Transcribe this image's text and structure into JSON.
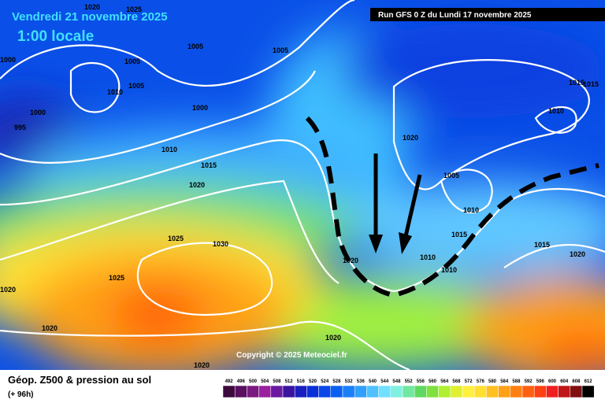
{
  "header": {
    "valid_time": "Vendredi 21 novembre 2025",
    "local_time": "1:00 locale",
    "run": "Run GFS 0 Z du Lundi 17 novembre 2025"
  },
  "isobar_labels": [
    "1020",
    "1025",
    "1000",
    "1005",
    "1005",
    "1005",
    "1005",
    "1010",
    "1000",
    "995",
    "1000",
    "1010",
    "1015",
    "1020",
    "1020",
    "1005",
    "1010",
    "1015",
    "1010",
    "1010",
    "1020",
    "1025",
    "1030",
    "1025",
    "1020",
    "1020",
    "1020",
    "1020",
    "1015",
    "1020",
    "1010",
    "1015",
    "1015"
  ],
  "copyright": "Copyright © 2025 Meteociel.fr",
  "footer": {
    "title": "Géop. Z500 & pression au sol",
    "lead": "(+ 96h)"
  },
  "color_scale": {
    "labels": [
      492,
      496,
      500,
      504,
      508,
      512,
      516,
      520,
      524,
      528,
      532,
      536,
      540,
      544,
      548,
      552,
      556,
      560,
      564,
      568,
      572,
      576,
      580,
      584,
      588,
      592,
      596,
      600,
      604,
      608,
      612
    ],
    "colors": [
      "#3c0a3c",
      "#5a1060",
      "#7a1a80",
      "#9a20a0",
      "#6a1aa0",
      "#3a14a0",
      "#1a20c0",
      "#0a30d8",
      "#0a48e8",
      "#0a60f0",
      "#1a80f8",
      "#30a0fc",
      "#50c0ff",
      "#70e0ff",
      "#80f0e0",
      "#70e8a0",
      "#60d860",
      "#80e040",
      "#b0f030",
      "#e0f030",
      "#fff040",
      "#ffe030",
      "#ffc020",
      "#ffa018",
      "#ff8010",
      "#ff6010",
      "#ff4010",
      "#f02020",
      "#c01818",
      "#801010",
      "#000000"
    ]
  }
}
